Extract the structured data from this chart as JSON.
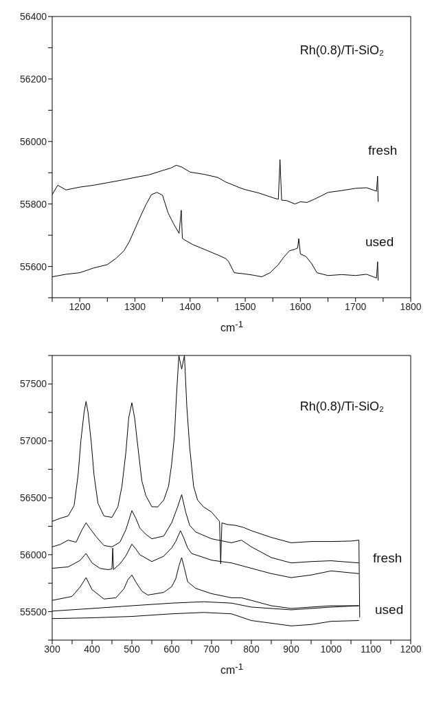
{
  "chart_data": [
    {
      "type": "line",
      "title": "Rh(0.8)/Ti-SiO₂",
      "xlabel": "cm$^{-1}$",
      "xlim": [
        1150,
        1800
      ],
      "xticks": [
        {
          "value": 1150,
          "label": null
        },
        1200,
        {
          "value": 1250,
          "label": null
        },
        1300,
        {
          "value": 1350,
          "label": null
        },
        1400,
        {
          "value": 1450,
          "label": null
        },
        1500,
        {
          "value": 1550,
          "label": null
        },
        1600,
        {
          "value": 1650,
          "label": null
        },
        1700,
        {
          "value": 1750,
          "label": null
        },
        1800
      ],
      "ylim": [
        55500,
        56400
      ],
      "yticks": [
        {
          "value": 55500,
          "label": null
        },
        55600,
        {
          "value": 55700,
          "label": null
        },
        55800,
        {
          "value": 55900,
          "label": null
        },
        56000,
        {
          "value": 56100,
          "label": null
        },
        56200,
        {
          "value": 56300,
          "label": null
        },
        56400
      ],
      "series": [
        {
          "color": "#000000",
          "x": [
            1150,
            1160,
            1175,
            1200,
            1225,
            1250,
            1275,
            1300,
            1325,
            1350,
            1365,
            1375,
            1385,
            1400,
            1425,
            1450,
            1465,
            1475,
            1490,
            1500,
            1525,
            1550,
            1560,
            1563,
            1566,
            1575,
            1590,
            1600,
            1612,
            1625,
            1640,
            1650,
            1675,
            1700,
            1720,
            1738,
            1740,
            1741
          ],
          "values": [
            55830,
            55860,
            55845,
            55854,
            55860,
            55868,
            55876,
            55885,
            55893,
            55907,
            55915,
            55924,
            55918,
            55902,
            55895,
            55885,
            55870,
            55863,
            55852,
            55846,
            55835,
            55820,
            55815,
            55942,
            55812,
            55811,
            55800,
            55807,
            55805,
            55815,
            55828,
            55837,
            55843,
            55850,
            55852,
            55841,
            55889,
            55807
          ]
        },
        {
          "color": "#000000",
          "x": [
            1150,
            1175,
            1200,
            1225,
            1250,
            1265,
            1280,
            1290,
            1300,
            1310,
            1320,
            1330,
            1340,
            1350,
            1360,
            1370,
            1380,
            1384,
            1386,
            1390,
            1405,
            1420,
            1450,
            1465,
            1470,
            1480,
            1500,
            1515,
            1530,
            1545,
            1560,
            1570,
            1580,
            1590,
            1595,
            1597,
            1600,
            1610,
            1620,
            1630,
            1650,
            1675,
            1700,
            1720,
            1738,
            1740,
            1741
          ],
          "values": [
            55567,
            55575,
            55580,
            55595,
            55606,
            55625,
            55650,
            55680,
            55720,
            55760,
            55798,
            55830,
            55837,
            55828,
            55772,
            55737,
            55706,
            55780,
            55690,
            55685,
            55670,
            55659,
            55637,
            55625,
            55615,
            55580,
            55576,
            55572,
            55567,
            55580,
            55606,
            55630,
            55650,
            55655,
            55659,
            55689,
            55640,
            55632,
            55610,
            55580,
            55571,
            55574,
            55571,
            55575,
            55563,
            55615,
            55555
          ]
        }
      ],
      "annotations": [
        "fresh",
        "used"
      ]
    },
    {
      "type": "line",
      "title": "Rh(0.8)/Ti-SiO₂",
      "xlabel": "cm$^{-1}$",
      "xlim": [
        300,
        1200
      ],
      "xticks": [
        300,
        {
          "value": 350,
          "label": null
        },
        400,
        {
          "value": 450,
          "label": null
        },
        500,
        {
          "value": 550,
          "label": null
        },
        600,
        {
          "value": 650,
          "label": null
        },
        700,
        {
          "value": 750,
          "label": null
        },
        800,
        {
          "value": 850,
          "label": null
        },
        900,
        {
          "value": 950,
          "label": null
        },
        1000,
        {
          "value": 1050,
          "label": null
        },
        1100,
        {
          "value": 1150,
          "label": null
        },
        1200
      ],
      "ylim": [
        55250,
        57750
      ],
      "yticks": [
        {
          "value": 55250,
          "label": null
        },
        55500,
        {
          "value": 55750,
          "label": null
        },
        56000,
        {
          "value": 56250,
          "label": null
        },
        56500,
        {
          "value": 56750,
          "label": null
        },
        57000,
        {
          "value": 57250,
          "label": null
        },
        57500,
        {
          "value": 57750,
          "label": null
        }
      ],
      "series": [
        {
          "color": "#000000",
          "x": [
            300,
            320,
            340,
            355,
            365,
            372,
            380,
            385,
            390,
            398,
            405,
            415,
            430,
            450,
            465,
            475,
            485,
            492,
            500,
            507,
            515,
            525,
            535,
            550,
            565,
            580,
            592,
            600,
            607,
            612,
            618,
            625,
            632,
            638,
            645,
            655,
            665,
            680,
            700,
            720,
            723,
            726,
            740,
            760,
            780,
            800,
            850,
            900,
            950,
            1000,
            1050,
            1070,
            1072
          ],
          "values": [
            56293,
            56320,
            56340,
            56432,
            56700,
            57000,
            57250,
            57347,
            57250,
            56990,
            56700,
            56450,
            56340,
            56328,
            56422,
            56600,
            56900,
            57200,
            57335,
            57200,
            56950,
            56650,
            56520,
            56422,
            56420,
            56480,
            56600,
            56800,
            57050,
            57400,
            57750,
            57630,
            57750,
            57300,
            56950,
            56600,
            56480,
            56420,
            56375,
            56293,
            55920,
            56280,
            56265,
            56258,
            56240,
            56211,
            56152,
            56105,
            56116,
            56116,
            56120,
            56128,
            55450
          ]
        },
        {
          "color": "#000000",
          "x": [
            300,
            320,
            340,
            360,
            375,
            385,
            395,
            410,
            430,
            450,
            470,
            485,
            500,
            510,
            520,
            535,
            550,
            580,
            600,
            615,
            625,
            635,
            645,
            660,
            700,
            750,
            775,
            800,
            850,
            900,
            950,
            1000,
            1070
          ],
          "values": [
            56069,
            56090,
            56128,
            56110,
            56220,
            56281,
            56230,
            56160,
            56081,
            56069,
            56110,
            56220,
            56387,
            56320,
            56234,
            56180,
            56140,
            56164,
            56281,
            56422,
            56528,
            56375,
            56260,
            56200,
            56140,
            56105,
            56128,
            56069,
            55975,
            55928,
            55940,
            55947,
            55928
          ]
        },
        {
          "color": "#000000",
          "x": [
            300,
            340,
            370,
            385,
            400,
            420,
            440,
            450,
            452,
            454,
            470,
            485,
            500,
            510,
            520,
            550,
            580,
            600,
            610,
            622,
            630,
            640,
            650,
            700,
            750,
            800,
            850,
            900,
            950,
            1000,
            1070
          ],
          "values": [
            55881,
            55893,
            55950,
            56011,
            55928,
            55880,
            55869,
            55875,
            56058,
            55870,
            55920,
            55990,
            56093,
            56050,
            56000,
            55940,
            55987,
            56060,
            56116,
            56211,
            56150,
            56060,
            56011,
            55952,
            55928,
            55881,
            55834,
            55799,
            55822,
            55858,
            55834
          ]
        },
        {
          "color": "#000000",
          "x": [
            300,
            350,
            370,
            385,
            400,
            430,
            460,
            480,
            490,
            500,
            510,
            525,
            540,
            580,
            600,
            610,
            618,
            625,
            632,
            640,
            660,
            700,
            750,
            775,
            800,
            850,
            900,
            950,
            1000,
            1070
          ],
          "values": [
            55599,
            55634,
            55716,
            55799,
            55693,
            55611,
            55622,
            55700,
            55780,
            55822,
            55760,
            55680,
            55646,
            55669,
            55720,
            55787,
            55900,
            55975,
            55880,
            55763,
            55705,
            55658,
            55622,
            55622,
            55599,
            55552,
            55528,
            55540,
            55552,
            55552
          ]
        },
        {
          "color": "#000000",
          "x": [
            300,
            400,
            500,
            600,
            680,
            750,
            800,
            850,
            900,
            1000,
            1070
          ],
          "values": [
            55505,
            55528,
            55552,
            55575,
            55587,
            55575,
            55540,
            55528,
            55516,
            55540,
            55552
          ]
        },
        {
          "color": "#000000",
          "x": [
            300,
            400,
            500,
            600,
            680,
            750,
            800,
            900,
            950,
            1000,
            1070
          ],
          "values": [
            55439,
            55446,
            55458,
            55481,
            55493,
            55481,
            55422,
            55375,
            55387,
            55415,
            55422
          ]
        }
      ],
      "annotations": [
        "fresh",
        "used"
      ]
    }
  ]
}
